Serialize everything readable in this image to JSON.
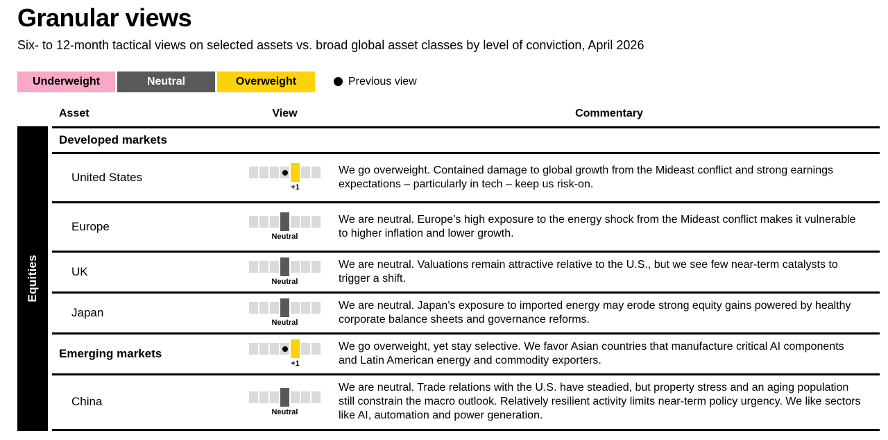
{
  "title": "Granular views",
  "subtitle": "Six- to 12-month tactical views on selected assets vs. broad global asset classes by level of conviction, April 2026",
  "legend": {
    "underweight_label": "Underweight",
    "neutral_label": "Neutral",
    "overweight_label": "Overweight",
    "previous_label": "Previous view"
  },
  "colors": {
    "underweight_pink": "#F9A8C8",
    "neutral_gray": "#595959",
    "overweight_yellow": "#FFD20A",
    "inactive_cell_gray": "#D9D9DE",
    "line_black": "#000000"
  },
  "table": {
    "headers": {
      "asset": "Asset",
      "view": "View",
      "commentary": "Commentary"
    },
    "group_label": "Equities",
    "rows": [
      {
        "type": "section",
        "asset": "Developed markets",
        "commentary": ""
      },
      {
        "type": "asset",
        "asset": "United States",
        "view": {
          "label": "+1",
          "active_index": 4,
          "active_type": "overweight",
          "dot_index": 3
        },
        "commentary": "We go overweight. Contained damage to global growth from the Mideast conflict and strong earnings expectations – particularly in tech – keep us risk-on."
      },
      {
        "type": "asset",
        "asset": "Europe",
        "view": {
          "label": "Neutral",
          "active_index": 3,
          "active_type": "neutral"
        },
        "commentary": "We are neutral. Europe’s high exposure to the energy shock from the Mideast conflict makes it vulnerable to higher inflation and lower growth."
      },
      {
        "type": "asset",
        "asset": "UK",
        "view": {
          "label": "Neutral",
          "active_index": 3,
          "active_type": "neutral"
        },
        "commentary": "We are neutral. Valuations remain attractive relative to the U.S., but we see few near-term catalysts to trigger a shift."
      },
      {
        "type": "asset",
        "asset": "Japan",
        "view": {
          "label": "Neutral",
          "active_index": 3,
          "active_type": "neutral"
        },
        "commentary": "We are neutral. Japan’s exposure to imported energy may erode strong equity gains powered by healthy corporate balance sheets and governance reforms."
      },
      {
        "type": "section-asset",
        "asset": "Emerging markets",
        "view": {
          "label": "+1",
          "active_index": 4,
          "active_type": "overweight",
          "dot_index": 3
        },
        "commentary": "We go overweight, yet stay selective. We favor Asian countries that manufacture critical AI components and Latin American energy and commodity exporters."
      },
      {
        "type": "asset",
        "asset": "China",
        "view": {
          "label": "Neutral",
          "active_index": 3,
          "active_type": "neutral"
        },
        "commentary": "We are neutral. Trade relations with the U.S. have steadied, but property stress and an aging population still constrain the macro outlook. Relatively resilient activity limits near-term policy urgency. We like sectors like AI, automation and power generation."
      }
    ]
  },
  "chart_data": {
    "type": "table",
    "title": "Granular views",
    "subtitle": "Six- to 12-month tactical views on selected assets vs. broad global asset classes by level of conviction, April 2026",
    "as_of": "April 2026",
    "scale": [
      -3,
      -2,
      -1,
      0,
      1,
      2,
      3
    ],
    "scale_legend": {
      "negative": "Underweight",
      "zero": "Neutral",
      "positive": "Overweight"
    },
    "group": "Equities",
    "rows": [
      {
        "asset": "Developed markets",
        "section": true
      },
      {
        "asset": "United States",
        "view": 1,
        "view_label": "+1",
        "previous_view": 0
      },
      {
        "asset": "Europe",
        "view": 0,
        "view_label": "Neutral"
      },
      {
        "asset": "UK",
        "view": 0,
        "view_label": "Neutral"
      },
      {
        "asset": "Japan",
        "view": 0,
        "view_label": "Neutral"
      },
      {
        "asset": "Emerging markets",
        "view": 1,
        "view_label": "+1",
        "previous_view": 0
      },
      {
        "asset": "China",
        "view": 0,
        "view_label": "Neutral"
      }
    ]
  }
}
